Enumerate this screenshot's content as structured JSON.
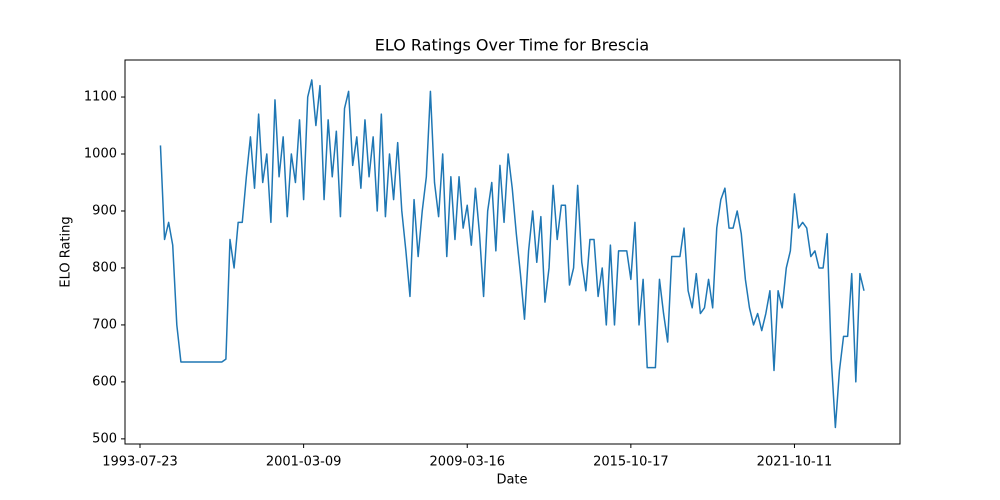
{
  "chart_data": {
    "type": "line",
    "title": "ELO Ratings Over Time for Brescia",
    "x_label": "Date",
    "y_label": "ELO Rating",
    "categories": [
      "1993-07-23",
      null,
      null,
      null,
      null,
      null,
      null,
      null,
      null,
      null,
      null,
      null,
      null,
      null,
      null,
      null,
      null,
      null,
      null,
      null,
      null,
      null,
      null,
      null,
      null,
      null,
      null,
      null,
      null,
      null,
      null,
      null,
      null,
      null,
      null,
      null,
      null,
      null,
      null,
      null,
      "2001-03-09",
      null,
      null,
      null,
      null,
      null,
      null,
      null,
      null,
      null,
      null,
      null,
      null,
      null,
      null,
      null,
      null,
      null,
      null,
      null,
      null,
      null,
      null,
      null,
      null,
      null,
      null,
      null,
      null,
      null,
      null,
      null,
      null,
      null,
      null,
      null,
      null,
      null,
      null,
      null,
      "2009-03-16",
      null,
      null,
      null,
      null,
      null,
      null,
      null,
      null,
      null,
      null,
      null,
      null,
      null,
      null,
      null,
      null,
      null,
      null,
      null,
      null,
      null,
      null,
      null,
      null,
      null,
      null,
      null,
      null,
      null,
      null,
      null,
      null,
      null,
      null,
      null,
      null,
      null,
      null,
      null,
      "2015-10-17",
      null,
      null,
      null,
      null,
      null,
      null,
      null,
      null,
      null,
      null,
      null,
      null,
      null,
      null,
      null,
      null,
      null,
      null,
      null,
      null,
      null,
      null,
      null,
      null,
      null,
      null,
      null,
      null,
      null,
      null,
      null,
      null,
      null,
      null,
      null,
      null,
      null,
      null,
      null,
      "2021-10-11",
      null,
      null,
      null,
      null,
      null,
      null,
      null,
      null,
      null,
      null,
      null,
      null,
      null,
      null,
      null,
      null,
      null
    ],
    "values": [
      null,
      null,
      null,
      null,
      null,
      1015,
      850,
      880,
      840,
      700,
      635,
      635,
      635,
      635,
      635,
      635,
      635,
      635,
      635,
      635,
      635,
      640,
      850,
      800,
      880,
      880,
      960,
      1030,
      940,
      1070,
      950,
      1000,
      880,
      1095,
      960,
      1030,
      890,
      1000,
      950,
      1060,
      920,
      1100,
      1130,
      1050,
      1120,
      920,
      1060,
      960,
      1040,
      890,
      1080,
      1110,
      980,
      1030,
      940,
      1060,
      960,
      1030,
      900,
      1070,
      890,
      1000,
      920,
      1020,
      900,
      830,
      750,
      920,
      820,
      900,
      960,
      1110,
      950,
      890,
      1000,
      820,
      960,
      850,
      960,
      870,
      910,
      840,
      940,
      860,
      750,
      900,
      950,
      830,
      980,
      880,
      1000,
      940,
      860,
      790,
      710,
      830,
      900,
      810,
      890,
      740,
      800,
      945,
      850,
      910,
      910,
      770,
      800,
      945,
      810,
      760,
      850,
      850,
      750,
      800,
      700,
      840,
      700,
      830,
      830,
      830,
      780,
      880,
      700,
      780,
      625,
      625,
      625,
      780,
      720,
      670,
      820,
      820,
      820,
      870,
      760,
      730,
      790,
      720,
      730,
      780,
      730,
      870,
      920,
      940,
      870,
      870,
      900,
      860,
      780,
      730,
      700,
      720,
      690,
      720,
      760,
      620,
      760,
      730,
      800,
      830,
      930,
      870,
      880,
      870,
      820,
      830,
      800,
      800,
      860,
      640,
      520,
      620,
      680,
      680,
      790,
      600,
      790,
      760
    ],
    "color": "#1f77b4",
    "ylim": [
      491,
      1165
    ],
    "yticks": [
      500,
      600,
      700,
      800,
      900,
      1000,
      1100
    ],
    "grid": false
  }
}
